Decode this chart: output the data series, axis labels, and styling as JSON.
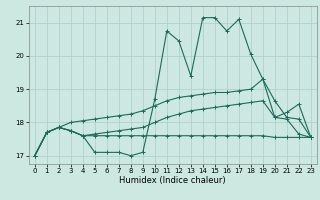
{
  "title": "",
  "xlabel": "Humidex (Indice chaleur)",
  "bg_color": "#cce8e0",
  "grid_color": "#aacccc",
  "line_color": "#1a6b5a",
  "xlim": [
    -0.5,
    23.5
  ],
  "ylim": [
    16.75,
    21.5
  ],
  "yticks": [
    17,
    18,
    19,
    20,
    21
  ],
  "xticks": [
    0,
    1,
    2,
    3,
    4,
    5,
    6,
    7,
    8,
    9,
    10,
    11,
    12,
    13,
    14,
    15,
    16,
    17,
    18,
    19,
    20,
    21,
    22,
    23
  ],
  "line1_y": [
    17.0,
    17.7,
    17.85,
    17.75,
    17.6,
    17.1,
    17.1,
    17.1,
    17.0,
    17.1,
    18.7,
    20.75,
    20.45,
    19.4,
    21.15,
    21.15,
    20.75,
    21.1,
    20.05,
    19.3,
    18.15,
    18.3,
    18.55,
    17.55
  ],
  "line2_y": [
    17.0,
    17.7,
    17.85,
    17.75,
    17.6,
    17.6,
    17.6,
    17.6,
    17.6,
    17.6,
    17.6,
    17.6,
    17.6,
    17.6,
    17.6,
    17.6,
    17.6,
    17.6,
    17.6,
    17.6,
    17.55,
    17.55,
    17.55,
    17.55
  ],
  "line3_y": [
    17.0,
    17.7,
    17.85,
    17.75,
    17.6,
    17.65,
    17.7,
    17.75,
    17.8,
    17.85,
    18.0,
    18.15,
    18.25,
    18.35,
    18.4,
    18.45,
    18.5,
    18.55,
    18.6,
    18.65,
    18.15,
    18.1,
    17.65,
    17.55
  ],
  "line4_y": [
    17.0,
    17.7,
    17.85,
    18.0,
    18.05,
    18.1,
    18.15,
    18.2,
    18.25,
    18.35,
    18.5,
    18.65,
    18.75,
    18.8,
    18.85,
    18.9,
    18.9,
    18.95,
    19.0,
    19.3,
    18.65,
    18.15,
    18.1,
    17.55
  ]
}
